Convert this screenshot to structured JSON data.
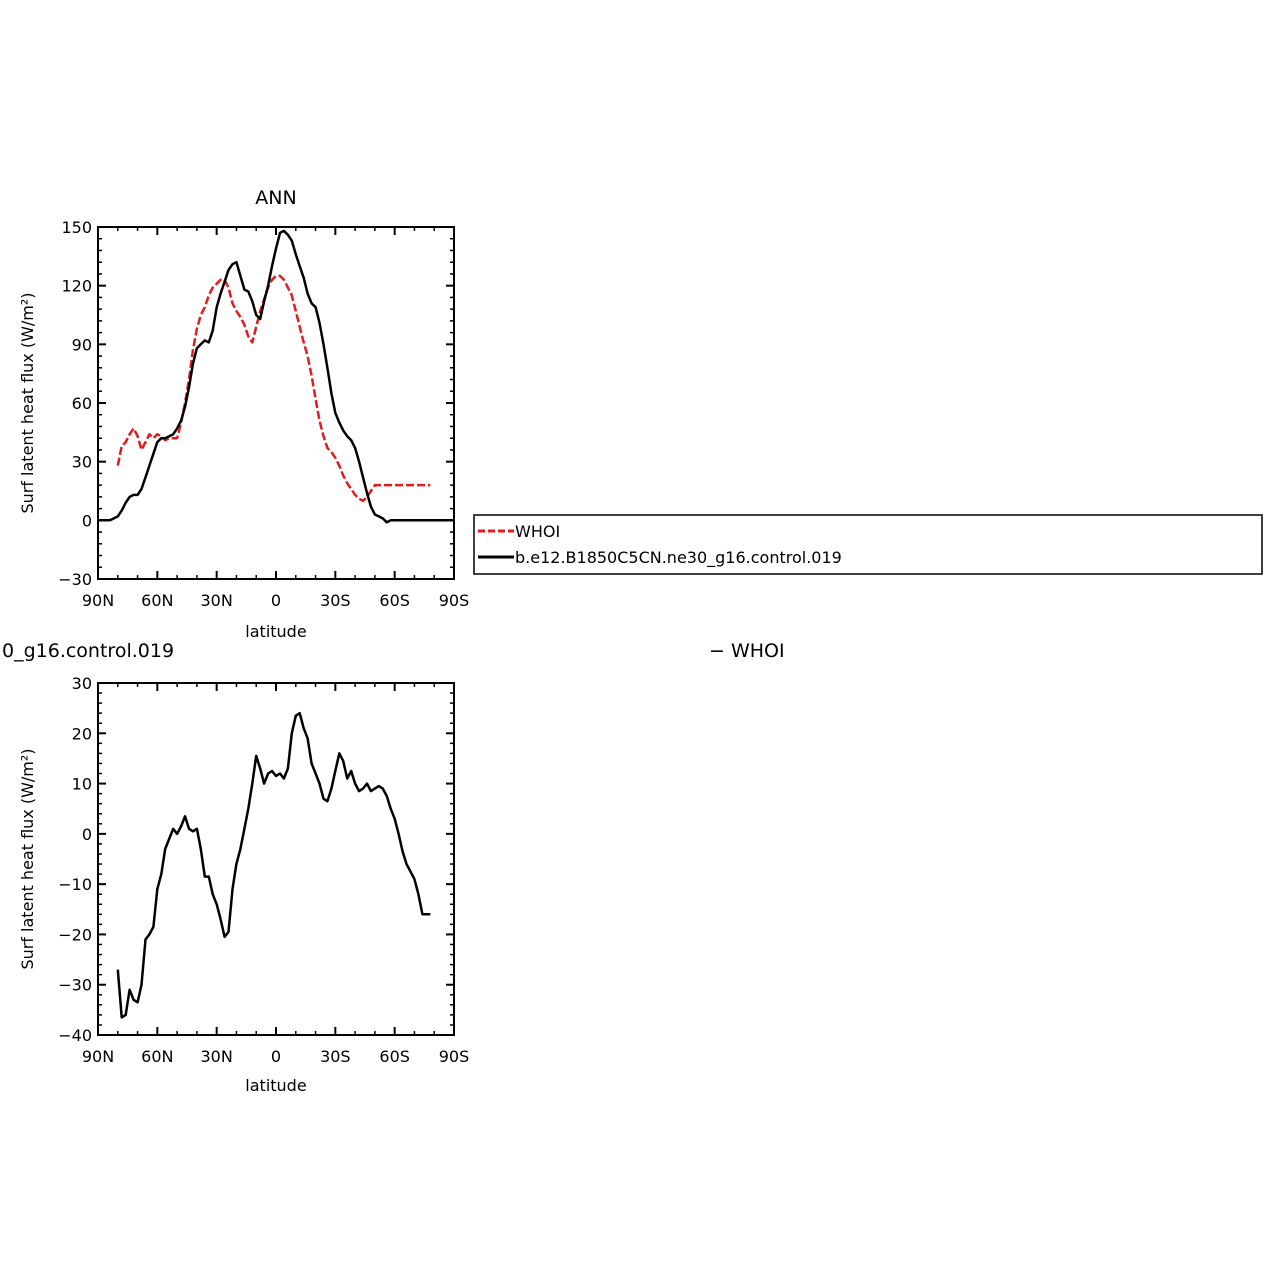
{
  "chart_data": [
    {
      "type": "line",
      "title": "ANN",
      "xlabel": "latitude",
      "ylabel": "Surf latent heat flux (W/m²)",
      "xlim": [
        90,
        -90
      ],
      "ylim": [
        -30,
        150
      ],
      "xticks": [
        {
          "value": 90,
          "label": "90N"
        },
        {
          "value": 60,
          "label": "60N"
        },
        {
          "value": 30,
          "label": "30N"
        },
        {
          "value": 0,
          "label": "0"
        },
        {
          "value": -30,
          "label": "30S"
        },
        {
          "value": -60,
          "label": "60S"
        },
        {
          "value": -90,
          "label": "90S"
        }
      ],
      "yticks": [
        -30,
        0,
        30,
        60,
        90,
        120,
        150
      ],
      "legend_position": "right",
      "series": [
        {
          "name": "WHOI",
          "color": "#e41a1c",
          "dash": true,
          "x": [
            80,
            78,
            76,
            74,
            72,
            70,
            68,
            66,
            64,
            62,
            60,
            58,
            56,
            54,
            52,
            50,
            48,
            46,
            44,
            42,
            40,
            38,
            36,
            34,
            32,
            30,
            28,
            26,
            24,
            22,
            20,
            18,
            16,
            14,
            12,
            10,
            8,
            6,
            4,
            2,
            0,
            -2,
            -4,
            -6,
            -8,
            -10,
            -12,
            -14,
            -16,
            -18,
            -20,
            -22,
            -24,
            -26,
            -28,
            -30,
            -32,
            -34,
            -36,
            -38,
            -40,
            -42,
            -44,
            -46,
            -48,
            -50,
            -52,
            -54,
            -56,
            -58,
            -60,
            -62,
            -64,
            -66,
            -68,
            -70,
            -72,
            -74,
            -76,
            -78
          ],
          "y": [
            28,
            38,
            40,
            44,
            47,
            43,
            36,
            40,
            44,
            42,
            44,
            43,
            41,
            42,
            42,
            42,
            50,
            60,
            72,
            87,
            98,
            105,
            109,
            115,
            119,
            121,
            123,
            123,
            119,
            111,
            107,
            104,
            100,
            94,
            91,
            99,
            107,
            113,
            119,
            123,
            125,
            125,
            123,
            119,
            115,
            107,
            99,
            91,
            84,
            74,
            62,
            51,
            43,
            37,
            35,
            32,
            28,
            23,
            19,
            16,
            13,
            11,
            10,
            12,
            15,
            18,
            18,
            18,
            18,
            18,
            18,
            18,
            18,
            18,
            18,
            18,
            18,
            18,
            18,
            18
          ]
        },
        {
          "name": "b.e12.B1850C5CN.ne30_g16.control.019",
          "color": "#000000",
          "dash": false,
          "x": [
            90,
            86,
            84,
            82,
            80,
            78,
            76,
            74,
            72,
            70,
            68,
            66,
            64,
            62,
            60,
            58,
            56,
            54,
            52,
            50,
            48,
            46,
            44,
            42,
            40,
            38,
            36,
            34,
            32,
            30,
            28,
            26,
            24,
            22,
            20,
            18,
            16,
            14,
            12,
            10,
            8,
            6,
            4,
            2,
            0,
            -2,
            -4,
            -6,
            -8,
            -10,
            -12,
            -14,
            -16,
            -18,
            -20,
            -22,
            -24,
            -26,
            -28,
            -30,
            -32,
            -34,
            -36,
            -38,
            -40,
            -42,
            -44,
            -46,
            -48,
            -50,
            -52,
            -54,
            -56,
            -58,
            -60,
            -62,
            -64,
            -66,
            -68,
            -70,
            -72,
            -74,
            -76,
            -78,
            -80,
            -82,
            -84,
            -86,
            -88,
            -90
          ],
          "y": [
            0,
            0,
            0,
            1,
            2,
            5,
            9,
            12,
            13,
            13,
            16,
            22,
            28,
            34,
            40,
            42,
            42,
            43,
            44,
            47,
            51,
            58,
            68,
            80,
            88,
            90,
            92,
            91,
            97,
            109,
            116,
            122,
            128,
            131,
            132,
            125,
            118,
            117,
            112,
            105,
            103,
            112,
            120,
            130,
            139,
            147,
            148,
            146,
            143,
            136,
            130,
            124,
            116,
            111,
            109,
            101,
            90,
            78,
            65,
            55,
            50,
            46,
            43,
            41,
            37,
            30,
            22,
            14,
            7,
            3,
            2,
            1,
            -1,
            0,
            0,
            0,
            0,
            0,
            0,
            0,
            0,
            0,
            0,
            0,
            0,
            0,
            0,
            0,
            0,
            0
          ]
        }
      ]
    },
    {
      "type": "line",
      "title_left": "0_g16.control.019",
      "title_right": "− WHOI",
      "xlabel": "latitude",
      "ylabel": "Surf latent heat flux (W/m²)",
      "xlim": [
        90,
        -90
      ],
      "ylim": [
        -40,
        30
      ],
      "xticks": [
        {
          "value": 90,
          "label": "90N"
        },
        {
          "value": 60,
          "label": "60N"
        },
        {
          "value": 30,
          "label": "30N"
        },
        {
          "value": 0,
          "label": "0"
        },
        {
          "value": -30,
          "label": "30S"
        },
        {
          "value": -60,
          "label": "60S"
        },
        {
          "value": -90,
          "label": "90S"
        }
      ],
      "yticks": [
        -40,
        -30,
        -20,
        -10,
        0,
        10,
        20,
        30
      ],
      "series": [
        {
          "color": "#000000",
          "dash": false,
          "x": [
            80,
            78,
            76,
            74,
            72,
            70,
            68,
            66,
            64,
            62,
            60,
            58,
            56,
            54,
            52,
            50,
            48,
            46,
            44,
            42,
            40,
            38,
            36,
            34,
            32,
            30,
            28,
            26,
            24,
            22,
            20,
            18,
            16,
            14,
            12,
            10,
            8,
            6,
            4,
            2,
            0,
            -2,
            -4,
            -6,
            -8,
            -10,
            -12,
            -14,
            -16,
            -18,
            -20,
            -22,
            -24,
            -26,
            -28,
            -30,
            -32,
            -34,
            -36,
            -38,
            -40,
            -42,
            -44,
            -46,
            -48,
            -50,
            -52,
            -54,
            -56,
            -58,
            -60,
            -62,
            -64,
            -66,
            -68,
            -70,
            -72,
            -74,
            -76,
            -78
          ],
          "y": [
            -27,
            -36.5,
            -36,
            -31,
            -33,
            -33.5,
            -30,
            -21,
            -20,
            -18.5,
            -11,
            -8,
            -3,
            -1,
            1,
            0,
            1.5,
            3.5,
            1,
            0.5,
            1,
            -3,
            -8.5,
            -8.5,
            -12,
            -14,
            -17,
            -20.5,
            -19.5,
            -11,
            -6,
            -3,
            1,
            5,
            10,
            15.5,
            13,
            10,
            12,
            12.5,
            11.5,
            12,
            11,
            13,
            20,
            23.5,
            24,
            21,
            19,
            14,
            12,
            10,
            7,
            6.5,
            9,
            12.5,
            16,
            14.5,
            11,
            12.5,
            10,
            8.5,
            9,
            10,
            8.5,
            9,
            9.5,
            9,
            7.5,
            5,
            3,
            0,
            -3.5,
            -6,
            -7.5,
            -9,
            -12,
            -16,
            -16,
            -16
          ]
        }
      ]
    }
  ]
}
